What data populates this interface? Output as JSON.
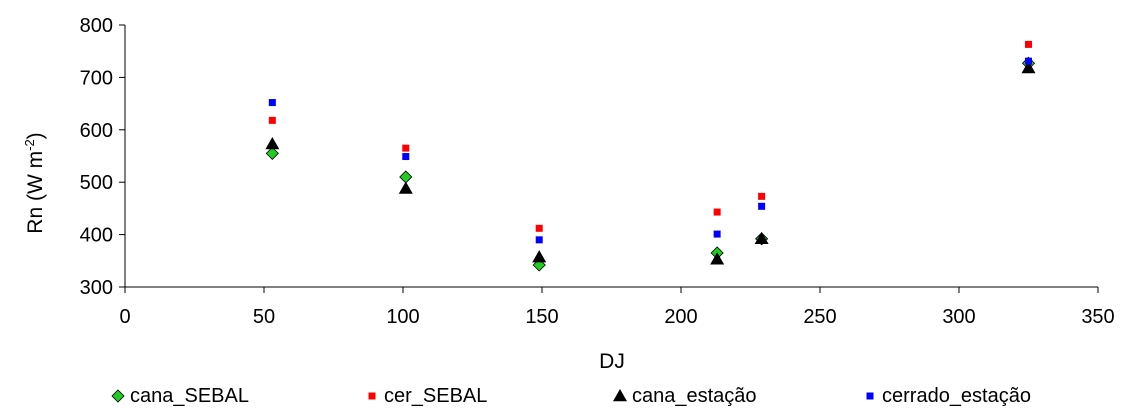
{
  "chart_data": {
    "type": "scatter",
    "title": "",
    "xlabel": "DJ",
    "ylabel_main": "Rn (W m",
    "ylabel_sup": "-2",
    "ylabel_close": ")",
    "xlim": [
      0,
      350
    ],
    "ylim": [
      300,
      800
    ],
    "x_ticks": [
      0,
      50,
      100,
      150,
      200,
      250,
      300,
      350
    ],
    "y_ticks": [
      300,
      400,
      500,
      600,
      700,
      800
    ],
    "grid": false,
    "legend_position": "bottom",
    "series": [
      {
        "name": "cana_SEBAL",
        "marker": "diamond",
        "color": "#22cc22",
        "points": [
          [
            53,
            555
          ],
          [
            101,
            510
          ],
          [
            149,
            342
          ],
          [
            213,
            365
          ],
          [
            229,
            392
          ],
          [
            325,
            727
          ]
        ]
      },
      {
        "name": "cer_SEBAL",
        "marker": "square",
        "color": "#ff0000",
        "points": [
          [
            53,
            618
          ],
          [
            101,
            565
          ],
          [
            149,
            412
          ],
          [
            213,
            443
          ],
          [
            229,
            473
          ],
          [
            325,
            763
          ]
        ]
      },
      {
        "name": "cana_estação",
        "marker": "triangle",
        "color": "#000000",
        "points": [
          [
            53,
            573
          ],
          [
            101,
            488
          ],
          [
            149,
            357
          ],
          [
            213,
            353
          ],
          [
            229,
            392
          ],
          [
            325,
            718
          ]
        ]
      },
      {
        "name": "cerrado_estação",
        "marker": "square",
        "color": "#0000ff",
        "points": [
          [
            53,
            652
          ],
          [
            101,
            549
          ],
          [
            149,
            390
          ],
          [
            213,
            401
          ],
          [
            229,
            454
          ],
          [
            325,
            731
          ]
        ]
      }
    ]
  }
}
